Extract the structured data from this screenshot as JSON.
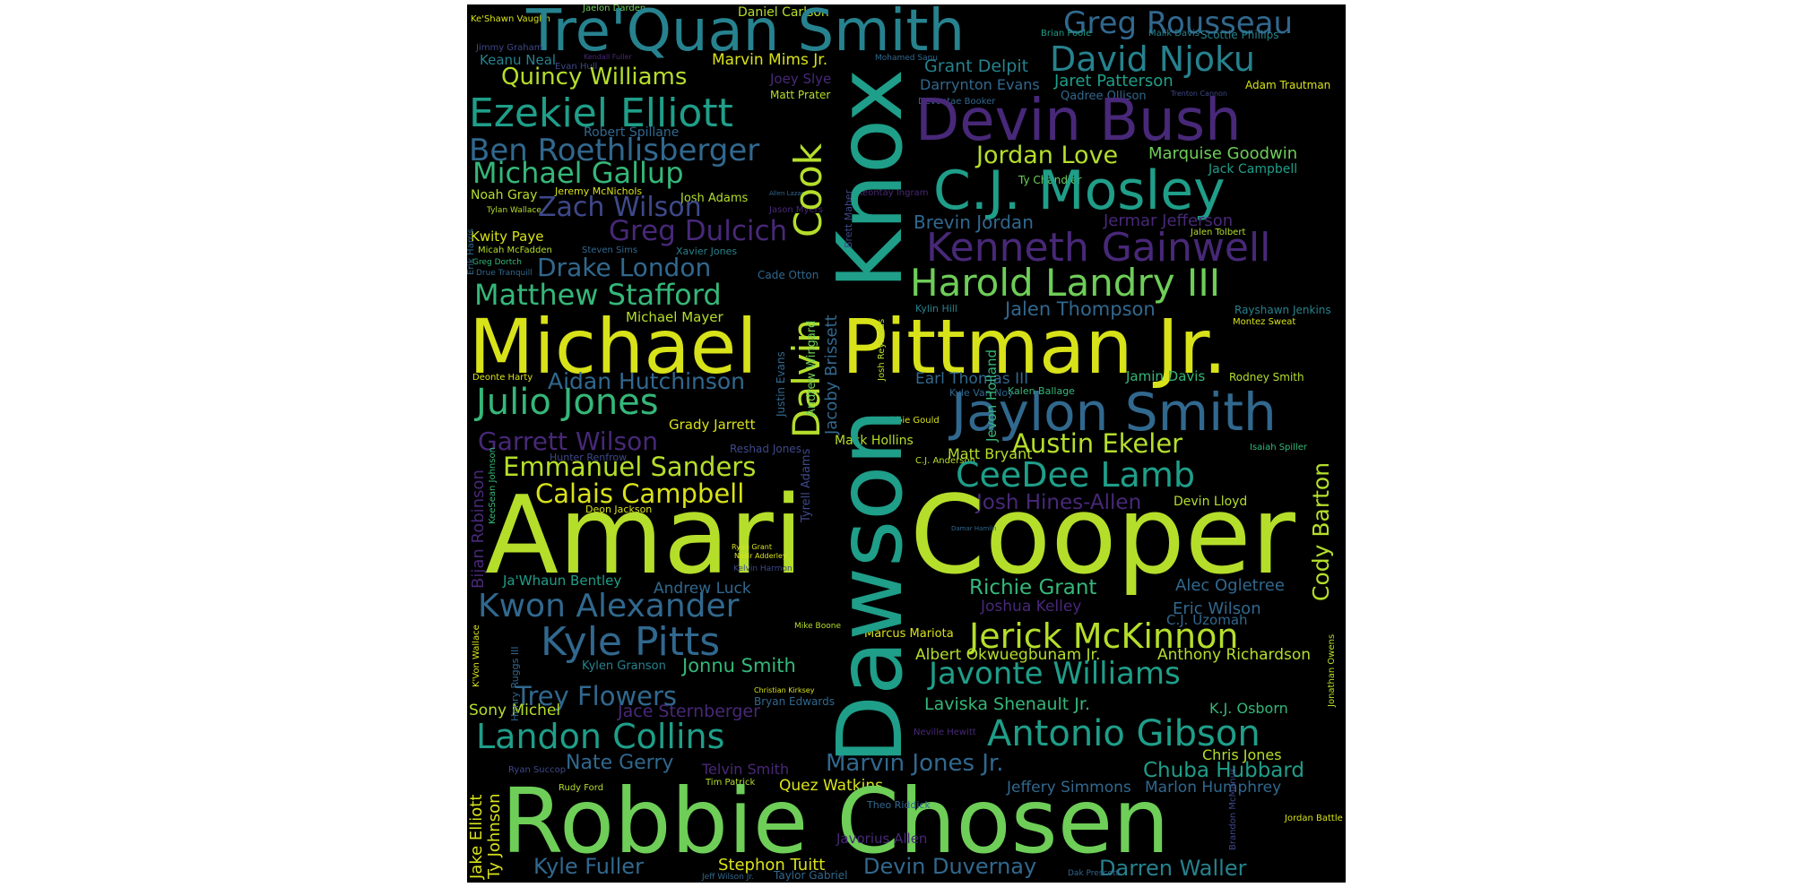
{
  "palette": {
    "background": "#000000",
    "yellow": "#d8e219",
    "lime": "#b5de2b",
    "green": "#6ece58",
    "teal_green": "#35b779",
    "teal": "#1f9e89",
    "blue_teal": "#26828e",
    "steel": "#31688e",
    "indigo": "#3e4989",
    "purple": "#482878"
  },
  "words": [
    "Ke'Shawn Vaughn",
    "Jaelon Darden",
    "Daniel Carlson",
    "Tre'Quan Smith",
    "Greg Rousseau",
    "Brian Poole",
    "Malik Davis",
    "Scottie Phillips",
    "Jimmy Graham",
    "Keanu Neal",
    "Kendall Fuller",
    "Marvin Mims Jr.",
    "Mohamed Sanu",
    "Grant Delpit",
    "David Njoku",
    "Evan Hull",
    "Quincy Williams",
    "Joey Slye",
    "Darrynton Evans",
    "Jaret Patterson",
    "Adam Trautman",
    "Matt Prater",
    "Qadree Ollison",
    "Trenton Cannon",
    "Ezekiel Elliott",
    "Devontae Booker",
    "Devin Bush",
    "Robert Spillane",
    "Ben Roethlisberger",
    "Jordan Love",
    "Marquise Goodwin",
    "Michael Gallup",
    "Jack Campbell",
    "Ty Chandler",
    "C.J. Mosley",
    "Jeremy McNichols",
    "Noah Gray",
    "Allen Lazard",
    "Keontay Ingram",
    "Tylan Wallace",
    "Josh Adams",
    "Zach Wilson",
    "Jason Myers",
    "Brevin Jordan",
    "Jermar Jefferson",
    "Kwity Paye",
    "Greg Dulcich",
    "Jalen Tolbert",
    "Micah McFadden",
    "Steven Sims",
    "Xavier Jones",
    "Kenneth Gainwell",
    "Greg Dortch",
    "Erik Harris",
    "Drake London",
    "Drue Tranquill",
    "Cade Otton",
    "Harold Landry III",
    "Matthew Stafford",
    "Jalen Thompson",
    "Kylin Hill",
    "Rayshawn Jenkins",
    "Cook",
    "Dalvin",
    "Dawson",
    "Knox",
    "Montez Sweat",
    "Michael",
    "Pittman Jr.",
    "Michael Mayer",
    "Deonte Harty",
    "Aidan Hutchinson",
    "Earl Thomas III",
    "Jamin Davis",
    "Rodney Smith",
    "Kalen Ballage",
    "Julio Jones",
    "Jaylon Smith",
    "Kyle Van Noy",
    "Robbie Gould",
    "Grady Jarrett",
    "Garrett Wilson",
    "Mack Hollins",
    "Austin Ekeler",
    "Matt Bryant",
    "Isaiah Spiller",
    "Reshad Jones",
    "Hunter Renfrow",
    "Emmanuel Sanders",
    "C.J. Anderson",
    "CeeDee Lamb",
    "Calais Campbell",
    "Josh Hines-Allen",
    "Devin Lloyd",
    "Cody Barton",
    "Deon Jackson",
    "Amari",
    "Cooper",
    "Bijan Robinson",
    "KeeSean Johnson",
    "Damar Hamlin",
    "Ryan Grant",
    "Nasir Adderley",
    "Ja'Whaun Bentley",
    "Kelvin Harmon",
    "Andrew Luck",
    "Richie Grant",
    "Alec Ogletree",
    "Kwon Alexander",
    "Joshua Kelley",
    "Eric Wilson",
    "C.J. Uzomah",
    "Kyle Pitts",
    "Mike Boone",
    "Marcus Mariota",
    "Jerick McKinnon",
    "Albert Okwuegbunam Jr.",
    "Anthony Richardson",
    "Kylen Granson",
    "Jonnu Smith",
    "Javonte Williams",
    "Trey Flowers",
    "Christian Kirksey",
    "Bryan Edwards",
    "Laviska Shenault Jr.",
    "K.J. Osborn",
    "Sony Michel",
    "Jace Sternberger",
    "Landon Collins",
    "Antonio Gibson",
    "Neville Hewitt",
    "Nate Gerry",
    "Marvin Jones Jr.",
    "Chris Jones",
    "Chuba Hubbard",
    "Telvin Smith",
    "Ryan Succop",
    "Tim Patrick",
    "Quez Watkins",
    "Jeffery Simmons",
    "Marlon Humphrey",
    "Rudy Ford",
    "Robbie Chosen",
    "Theo Riddick",
    "Jordan Battle",
    "Javorius Allen",
    "Kyle Fuller",
    "Stephon Tuitt",
    "Devin Duvernay",
    "Darren Waller",
    "Jeff Wilson Jr.",
    "Taylor Gabriel",
    "Jake Elliott",
    "Ty Johnson",
    "Henry Ruggs III",
    "K'Von Wallace",
    "Dak Prescott",
    "Tyrell Adams",
    "Jacoby Brissett",
    "Andrew Wingard",
    "Justin Evans",
    "Josh Reynolds",
    "Jevon Holland",
    "Brett Maher",
    "Jonathan Owens",
    "Brandon McManus",
    "Devontae Booker"
  ]
}
